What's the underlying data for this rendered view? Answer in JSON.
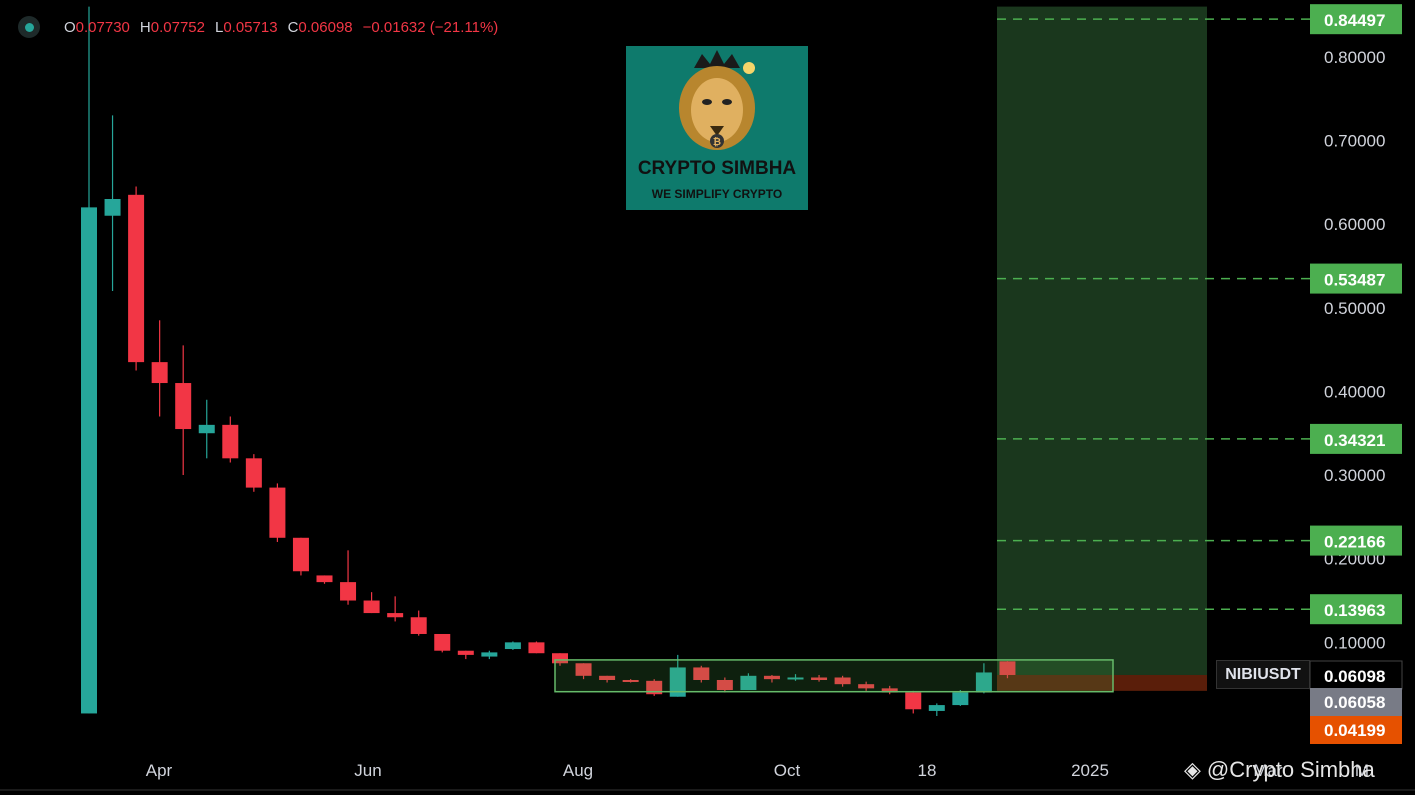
{
  "legend": {
    "open_key": "O",
    "open": "0.07730",
    "high_key": "H",
    "high": "0.07752",
    "low_key": "L",
    "low": "0.05713",
    "close_key": "C",
    "close": "0.06098",
    "change": "−0.01632 (−21.11%)"
  },
  "logo": {
    "brand": "CRYPTO SIMBHA",
    "tagline": "WE SIMPLIFY CRYPTO"
  },
  "ticker_label": "NIBIUSDT",
  "watermark": "@Crypto Simbha",
  "colors": {
    "up": "#26a69a",
    "down": "#f23645",
    "target": "#4caf50",
    "zone_fill": "#1b3a1f",
    "stop_fill": "#5a1e0a",
    "orange": "#e65100",
    "gray": "#787b86"
  },
  "chart_data": {
    "type": "candlestick",
    "symbol": "NIBIUSDT",
    "x_tick_labels": [
      "Apr",
      "Jun",
      "Aug",
      "Oct",
      "18",
      "2025",
      "Mar",
      "M"
    ],
    "y_tick_labels": [
      "0.10000",
      "0.20000",
      "0.30000",
      "0.40000",
      "0.50000",
      "0.60000",
      "0.70000",
      "0.80000"
    ],
    "ylim": [
      0.0,
      0.86
    ],
    "candles": [
      {
        "o": 0.015,
        "h": 0.86,
        "l": 0.015,
        "c": 0.62
      },
      {
        "o": 0.61,
        "h": 0.73,
        "l": 0.52,
        "c": 0.63
      },
      {
        "o": 0.635,
        "h": 0.645,
        "l": 0.425,
        "c": 0.435
      },
      {
        "o": 0.435,
        "h": 0.485,
        "l": 0.37,
        "c": 0.41
      },
      {
        "o": 0.41,
        "h": 0.455,
        "l": 0.3,
        "c": 0.355
      },
      {
        "o": 0.35,
        "h": 0.39,
        "l": 0.32,
        "c": 0.36
      },
      {
        "o": 0.36,
        "h": 0.37,
        "l": 0.315,
        "c": 0.32
      },
      {
        "o": 0.32,
        "h": 0.325,
        "l": 0.28,
        "c": 0.285
      },
      {
        "o": 0.285,
        "h": 0.29,
        "l": 0.22,
        "c": 0.225
      },
      {
        "o": 0.225,
        "h": 0.225,
        "l": 0.18,
        "c": 0.185
      },
      {
        "o": 0.18,
        "h": 0.18,
        "l": 0.17,
        "c": 0.172
      },
      {
        "o": 0.172,
        "h": 0.21,
        "l": 0.145,
        "c": 0.15
      },
      {
        "o": 0.15,
        "h": 0.16,
        "l": 0.135,
        "c": 0.135
      },
      {
        "o": 0.135,
        "h": 0.155,
        "l": 0.125,
        "c": 0.13
      },
      {
        "o": 0.13,
        "h": 0.138,
        "l": 0.108,
        "c": 0.11
      },
      {
        "o": 0.11,
        "h": 0.11,
        "l": 0.088,
        "c": 0.09
      },
      {
        "o": 0.09,
        "h": 0.09,
        "l": 0.08,
        "c": 0.085
      },
      {
        "o": 0.083,
        "h": 0.09,
        "l": 0.08,
        "c": 0.088
      },
      {
        "o": 0.092,
        "h": 0.101,
        "l": 0.091,
        "c": 0.1
      },
      {
        "o": 0.1,
        "h": 0.101,
        "l": 0.087,
        "c": 0.087
      },
      {
        "o": 0.087,
        "h": 0.087,
        "l": 0.072,
        "c": 0.075
      },
      {
        "o": 0.075,
        "h": 0.075,
        "l": 0.056,
        "c": 0.06
      },
      {
        "o": 0.06,
        "h": 0.06,
        "l": 0.052,
        "c": 0.055
      },
      {
        "o": 0.055,
        "h": 0.056,
        "l": 0.052,
        "c": 0.054
      },
      {
        "o": 0.054,
        "h": 0.056,
        "l": 0.036,
        "c": 0.038
      },
      {
        "o": 0.035,
        "h": 0.085,
        "l": 0.035,
        "c": 0.07
      },
      {
        "o": 0.07,
        "h": 0.072,
        "l": 0.052,
        "c": 0.055
      },
      {
        "o": 0.055,
        "h": 0.058,
        "l": 0.04,
        "c": 0.043
      },
      {
        "o": 0.043,
        "h": 0.063,
        "l": 0.043,
        "c": 0.06
      },
      {
        "o": 0.06,
        "h": 0.061,
        "l": 0.052,
        "c": 0.056
      },
      {
        "o": 0.056,
        "h": 0.062,
        "l": 0.054,
        "c": 0.058
      },
      {
        "o": 0.058,
        "h": 0.061,
        "l": 0.053,
        "c": 0.055
      },
      {
        "o": 0.058,
        "h": 0.06,
        "l": 0.047,
        "c": 0.05
      },
      {
        "o": 0.05,
        "h": 0.053,
        "l": 0.042,
        "c": 0.045
      },
      {
        "o": 0.045,
        "h": 0.048,
        "l": 0.038,
        "c": 0.04
      },
      {
        "o": 0.04,
        "h": 0.042,
        "l": 0.015,
        "c": 0.02
      },
      {
        "o": 0.018,
        "h": 0.027,
        "l": 0.012,
        "c": 0.025
      },
      {
        "o": 0.025,
        "h": 0.043,
        "l": 0.024,
        "c": 0.04
      },
      {
        "o": 0.04,
        "h": 0.075,
        "l": 0.039,
        "c": 0.064
      },
      {
        "o": 0.0773,
        "h": 0.07752,
        "l": 0.05713,
        "c": 0.06098
      }
    ],
    "accumulation_box": {
      "price_low": 0.041,
      "price_high": 0.079
    },
    "target_levels": [
      "0.84497",
      "0.53487",
      "0.34321",
      "0.22166",
      "0.13963"
    ],
    "price_labels": {
      "last": "0.06098",
      "gray": "0.06058",
      "stop": "0.04199"
    },
    "target_zone": {
      "low": 0.06098,
      "high": 0.86
    },
    "stop_zone": {
      "low": 0.04199,
      "high": 0.06098
    }
  }
}
